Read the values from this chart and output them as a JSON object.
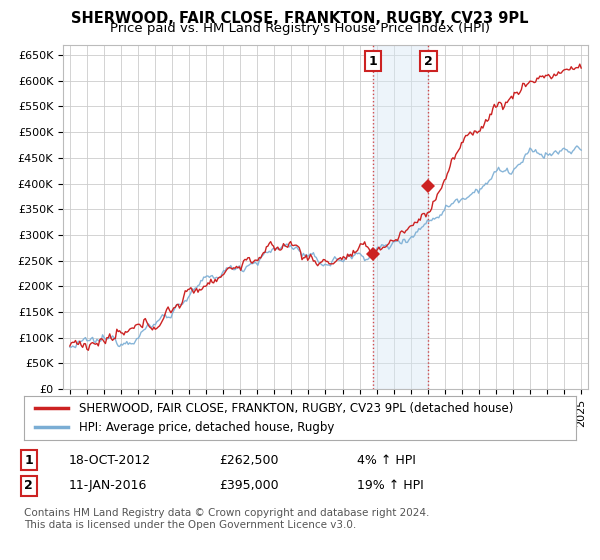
{
  "title": "SHERWOOD, FAIR CLOSE, FRANKTON, RUGBY, CV23 9PL",
  "subtitle": "Price paid vs. HM Land Registry's House Price Index (HPI)",
  "ylim": [
    0,
    670000
  ],
  "yticks": [
    0,
    50000,
    100000,
    150000,
    200000,
    250000,
    300000,
    350000,
    400000,
    450000,
    500000,
    550000,
    600000,
    650000
  ],
  "ytick_labels": [
    "£0",
    "£50K",
    "£100K",
    "£150K",
    "£200K",
    "£250K",
    "£300K",
    "£350K",
    "£400K",
    "£450K",
    "£500K",
    "£550K",
    "£600K",
    "£650K"
  ],
  "background_color": "#ffffff",
  "plot_bg_color": "#ffffff",
  "grid_color": "#cccccc",
  "hpi_line_color": "#7aadd4",
  "price_line_color": "#cc2222",
  "sale1_date": 2012.8,
  "sale1_price": 262500,
  "sale1_label": "1",
  "sale2_date": 2016.04,
  "sale2_price": 395000,
  "sale2_label": "2",
  "shade_color": "#d8e8f5",
  "vline_color": "#cc2222",
  "legend_label_price": "SHERWOOD, FAIR CLOSE, FRANKTON, RUGBY, CV23 9PL (detached house)",
  "legend_label_hpi": "HPI: Average price, detached house, Rugby",
  "annotation1_date": "18-OCT-2012",
  "annotation1_price": "£262,500",
  "annotation1_pct": "4% ↑ HPI",
  "annotation2_date": "11-JAN-2016",
  "annotation2_price": "£395,000",
  "annotation2_pct": "19% ↑ HPI",
  "footer": "Contains HM Land Registry data © Crown copyright and database right 2024.\nThis data is licensed under the Open Government Licence v3.0.",
  "title_fontsize": 10.5,
  "subtitle_fontsize": 9.5,
  "tick_fontsize": 8,
  "legend_fontsize": 8.5,
  "annotation_fontsize": 9,
  "footer_fontsize": 7.5,
  "xlim_left": 1994.6,
  "xlim_right": 2025.4
}
